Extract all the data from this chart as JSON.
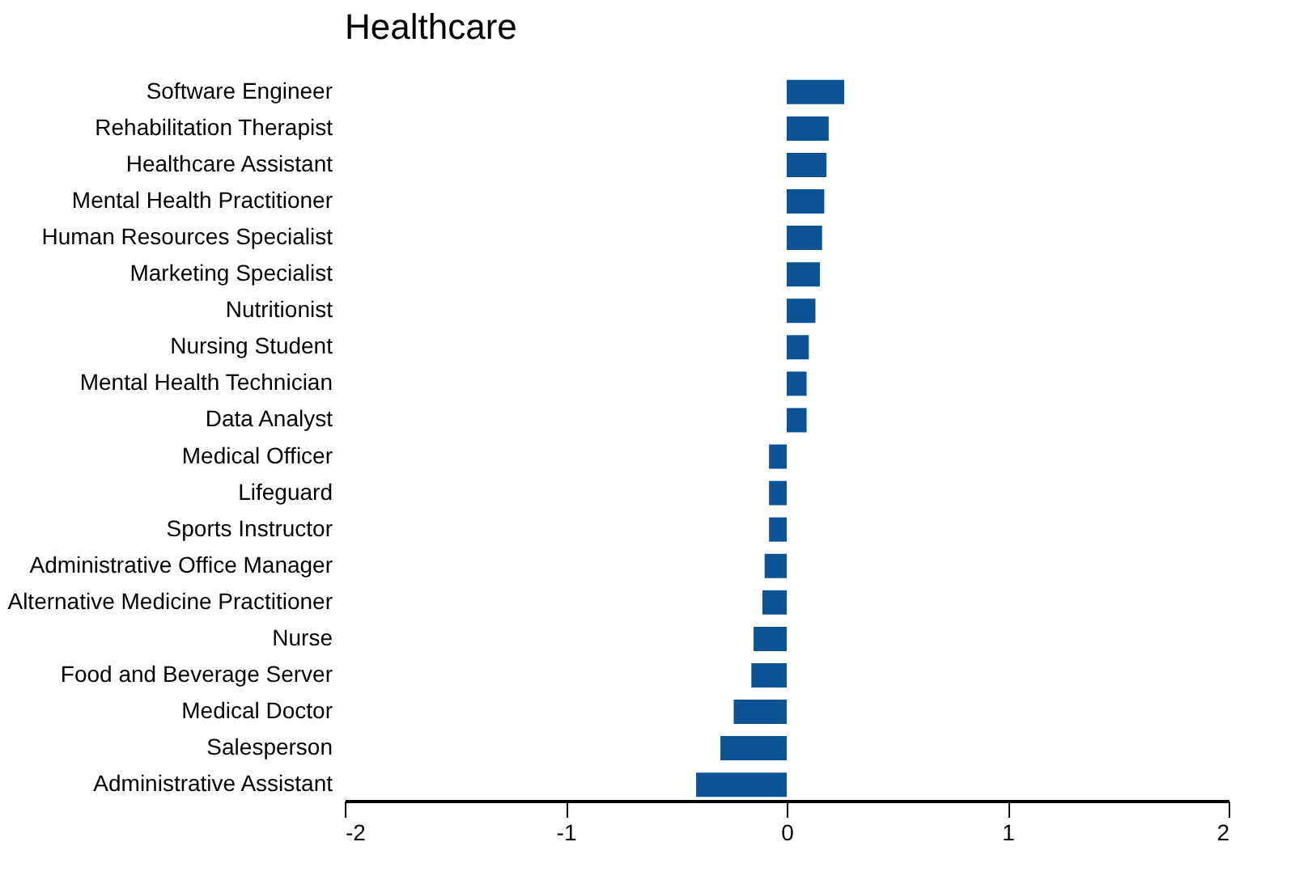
{
  "chart_data": {
    "type": "bar",
    "orientation": "horizontal",
    "title": "Healthcare",
    "categories": [
      "Software Engineer",
      "Rehabilitation Therapist",
      "Healthcare Assistant",
      "Mental Health Practitioner",
      "Human Resources Specialist",
      "Marketing Specialist",
      "Nutritionist",
      "Nursing Student",
      "Mental Health Technician",
      "Data Analyst",
      "Medical Officer",
      "Lifeguard",
      "Sports Instructor",
      "Administrative Office Manager",
      "Alternative Medicine Practitioner",
      "Nurse",
      "Food and Beverage Server",
      "Medical Doctor",
      "Salesperson",
      "Administrative Assistant"
    ],
    "values": [
      0.26,
      0.19,
      0.18,
      0.17,
      0.16,
      0.15,
      0.13,
      0.1,
      0.09,
      0.09,
      -0.08,
      -0.08,
      -0.08,
      -0.1,
      -0.11,
      -0.15,
      -0.16,
      -0.24,
      -0.3,
      -0.41
    ],
    "color": "#0b5394",
    "xlim": [
      -2,
      2
    ],
    "xticks": [
      -2,
      -1,
      0,
      1,
      2
    ],
    "grid": false
  }
}
